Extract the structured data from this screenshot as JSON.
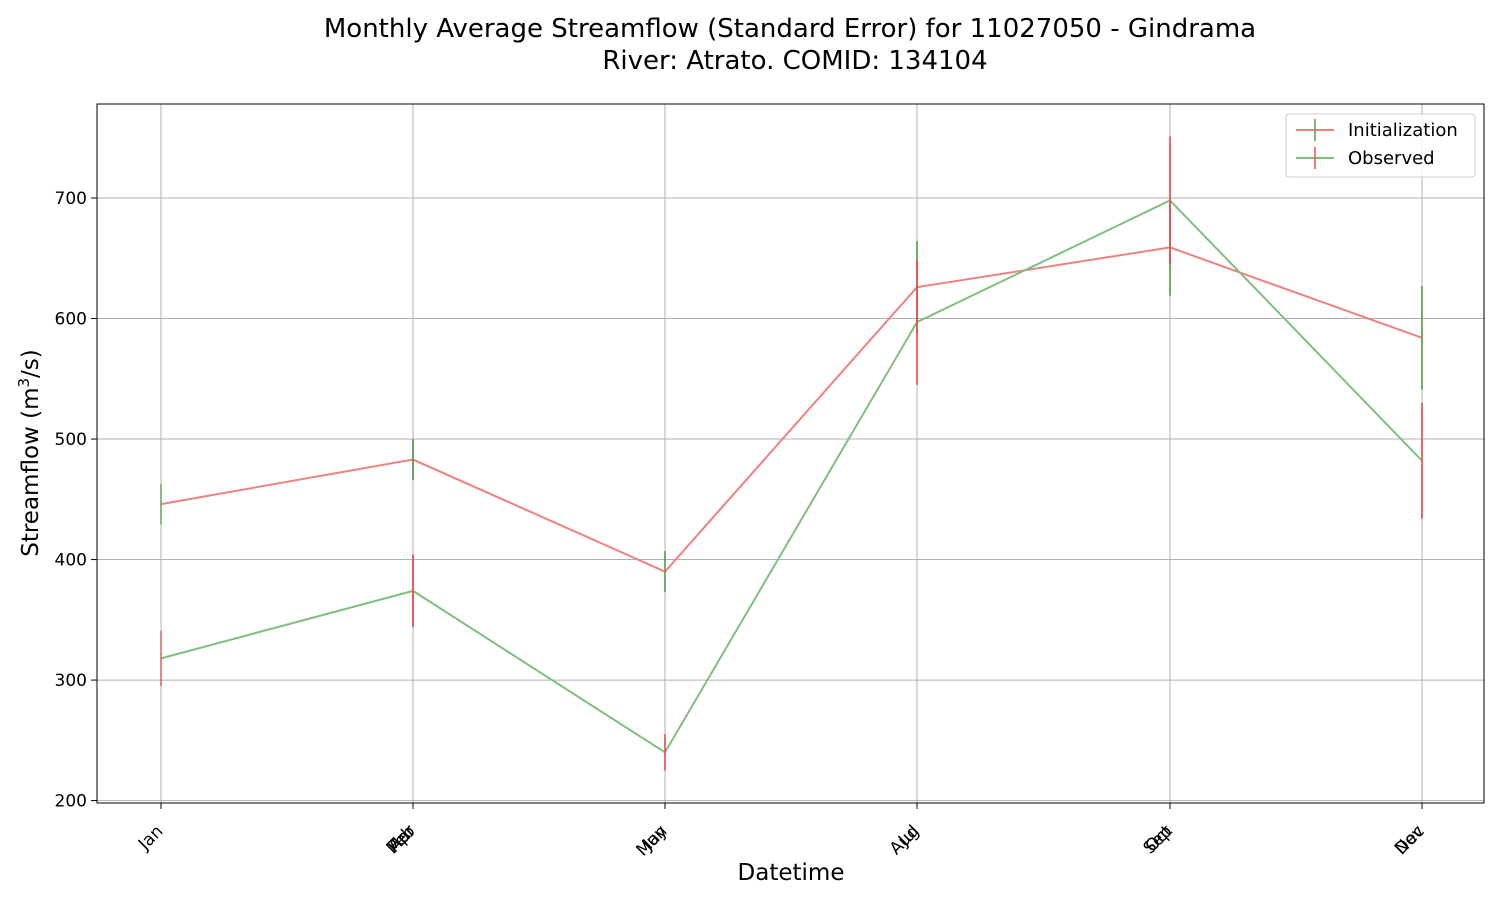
{
  "chart_data": {
    "type": "line",
    "title": "Monthly Average Streamflow (Standard Error) for 11027050 - Gindrama",
    "subtitle": "River: Atrato. COMID: 134104",
    "xlabel": "Datetime",
    "ylabel_main": "Streamflow (m",
    "ylabel_sup": "3",
    "ylabel_tail": "/s)",
    "ylim": [
      198,
      778
    ],
    "yticks": [
      200,
      300,
      400,
      500,
      600,
      700
    ],
    "grid": true,
    "legend_position": "top-right",
    "x": [
      "Jan",
      "Feb",
      "Mar",
      "Apr",
      "May",
      "Jun",
      "Jul",
      "Aug",
      "Sep",
      "Oct",
      "Nov",
      "Dec"
    ],
    "series": [
      {
        "name": "Initialization",
        "color": "#f08080",
        "errcolor": "#5a9e4b",
        "values": [
          446,
          483,
          483,
          483,
          390,
          390,
          626,
          626,
          659,
          659,
          584,
          584
        ],
        "err": [
          17,
          17,
          17,
          17,
          17,
          17,
          38,
          38,
          40,
          40,
          43,
          43
        ]
      },
      {
        "name": "Observed",
        "color": "#7fbf7f",
        "errcolor": "#e84f4f",
        "values": [
          318,
          374,
          374,
          374,
          240,
          240,
          597,
          597,
          698,
          698,
          482,
          482
        ],
        "err": [
          23,
          30,
          30,
          30,
          15,
          15,
          52,
          52,
          53,
          53,
          48,
          48
        ]
      }
    ]
  }
}
